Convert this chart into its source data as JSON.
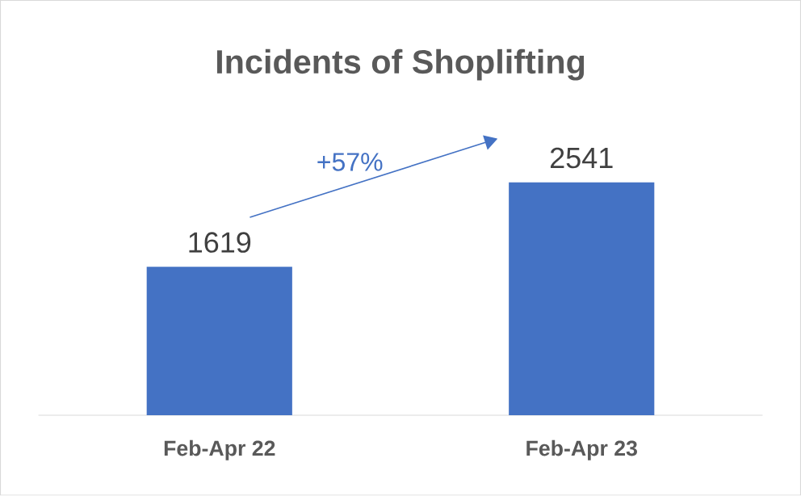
{
  "chart_data": {
    "type": "bar",
    "title": "Incidents of Shoplifting",
    "categories": [
      "Feb-Apr 22",
      "Feb-Apr 23"
    ],
    "values": [
      1619,
      2541
    ],
    "color": "#4472c4",
    "data_labels": true,
    "annotations": [
      "+57%"
    ]
  }
}
